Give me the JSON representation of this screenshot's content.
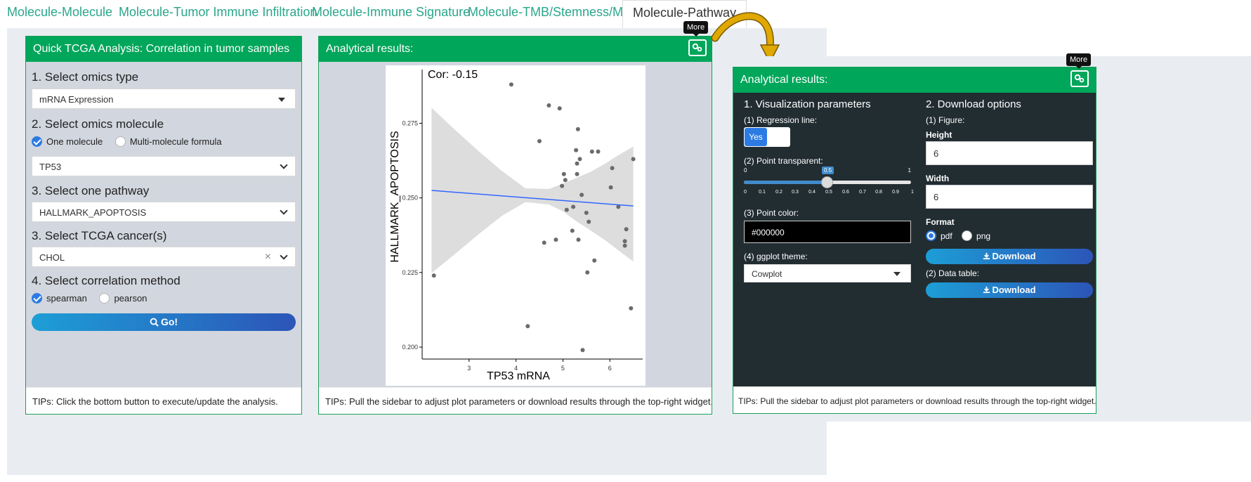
{
  "tabs": [
    {
      "label": "Molecule-Molecule"
    },
    {
      "label": "Molecule-Tumor Immune Infiltration"
    },
    {
      "label": "Molecule-Immune Signature"
    },
    {
      "label": "Molecule-TMB/Stemness/MSI"
    },
    {
      "label": "Molecule-Pathway"
    }
  ],
  "left_panel": {
    "title": "Quick TCGA Analysis: Correlation in tumor samples",
    "omics_type": {
      "label": "1. Select omics type",
      "value": "mRNA Expression"
    },
    "omics_molecule": {
      "label": "2. Select omics molecule",
      "options": [
        "One molecule",
        "Multi-molecule formula"
      ],
      "selected": "One molecule",
      "value": "TP53"
    },
    "pathway": {
      "label": "3. Select one pathway",
      "value": "HALLMARK_APOPTOSIS"
    },
    "cancer": {
      "label": "3. Select TCGA cancer(s)",
      "value": "CHOL",
      "clear": "×"
    },
    "method": {
      "label": "4. Select correlation method",
      "options": [
        "spearman",
        "pearson"
      ],
      "selected": "spearman"
    },
    "go_button": "Go!",
    "tips": "TIPs: Click the bottom button to execute/update the analysis."
  },
  "middle_panel": {
    "title": "Analytical results:",
    "more_tooltip": "More",
    "tips": "TIPs: Pull the sidebar to adjust plot parameters or download results through the top-right widget."
  },
  "chart_data": {
    "type": "scatter",
    "annotation": "Cor:  -0.15",
    "xlabel": "TP53 mRNA",
    "ylabel": "HALLMARK_APOPTOSIS",
    "xlim": [
      2.0,
      6.7
    ],
    "ylim": [
      0.196,
      0.293
    ],
    "x_ticks": [
      "3",
      "4",
      "5",
      "6"
    ],
    "y_ticks": [
      "0.200",
      "0.225",
      "0.250",
      "0.275"
    ],
    "points": [
      [
        2.25,
        0.224
      ],
      [
        3.9,
        0.288
      ],
      [
        4.25,
        0.207
      ],
      [
        4.5,
        0.269
      ],
      [
        4.6,
        0.235
      ],
      [
        4.7,
        0.281
      ],
      [
        4.85,
        0.236
      ],
      [
        4.93,
        0.28
      ],
      [
        4.98,
        0.254
      ],
      [
        5.02,
        0.258
      ],
      [
        5.05,
        0.256
      ],
      [
        5.08,
        0.246
      ],
      [
        5.2,
        0.239
      ],
      [
        5.22,
        0.247
      ],
      [
        5.28,
        0.266
      ],
      [
        5.3,
        0.258
      ],
      [
        5.3,
        0.2615
      ],
      [
        5.32,
        0.273
      ],
      [
        5.33,
        0.236
      ],
      [
        5.36,
        0.263
      ],
      [
        5.4,
        0.251
      ],
      [
        5.42,
        0.199
      ],
      [
        5.5,
        0.245
      ],
      [
        5.52,
        0.225
      ],
      [
        5.55,
        0.242
      ],
      [
        5.62,
        0.2655
      ],
      [
        5.67,
        0.229
      ],
      [
        5.75,
        0.2655
      ],
      [
        6.02,
        0.2535
      ],
      [
        6.05,
        0.26
      ],
      [
        6.18,
        0.247
      ],
      [
        6.32,
        0.234
      ],
      [
        6.32,
        0.2355
      ],
      [
        6.35,
        0.2395
      ],
      [
        6.45,
        0.213
      ],
      [
        6.5,
        0.263
      ]
    ],
    "regression": {
      "x": [
        2.2,
        6.5
      ],
      "y": [
        0.2525,
        0.2473
      ]
    },
    "ci_band": {
      "x": [
        2.2,
        2.7,
        3.2,
        3.7,
        4.2,
        4.7,
        5.0,
        5.3,
        5.6,
        5.9,
        6.2,
        6.5
      ],
      "upper": [
        0.2802,
        0.2728,
        0.2657,
        0.259,
        0.2532,
        0.253,
        0.2548,
        0.2568,
        0.2588,
        0.2615,
        0.2645,
        0.2672
      ],
      "lower": [
        0.2248,
        0.2312,
        0.2378,
        0.244,
        0.2486,
        0.2478,
        0.2455,
        0.242,
        0.239,
        0.2358,
        0.2322,
        0.2287
      ]
    },
    "point_color": "#6b6b6b",
    "line_color": "#3366ff",
    "band_color": "#d9d9d9"
  },
  "right_panel": {
    "title": "Analytical results:",
    "more_tooltip": "More",
    "vis_params": {
      "title": "1. Visualization parameters",
      "regression_label": "(1) Regression line:",
      "regression_value": "Yes",
      "transparency_label": "(2) Point transparent:",
      "slider_min": "0",
      "slider_max": "1",
      "slider_value": "0.5",
      "slider_fraction": 0.5,
      "slider_ticks": [
        "0",
        "0.1",
        "0.2",
        "0.3",
        "0.4",
        "0.5",
        "0.6",
        "0.7",
        "0.8",
        "0.9",
        "1"
      ],
      "color_label": "(3) Point color:",
      "color_value": "#000000",
      "theme_label": "(4) ggplot theme:",
      "theme_value": "Cowplot"
    },
    "download": {
      "title": "2. Download options",
      "figure_label": "(1) Figure:",
      "height_label": "Height",
      "height_value": "6",
      "width_label": "Width",
      "width_value": "6",
      "format_label": "Format",
      "format_options": [
        "pdf",
        "png"
      ],
      "format_selected": "pdf",
      "download_button": "Download",
      "data_table_label": "(2) Data table:",
      "download_button_2": "Download"
    },
    "tips": "TIPs: Pull the sidebar to adjust plot parameters or download results through the top-right widget."
  },
  "colors": {
    "accent_green": "#00a65a",
    "tab_teal": "#2aa68b",
    "arrow_gold": "#e0a800",
    "dark_sidebar": "#222d32"
  }
}
